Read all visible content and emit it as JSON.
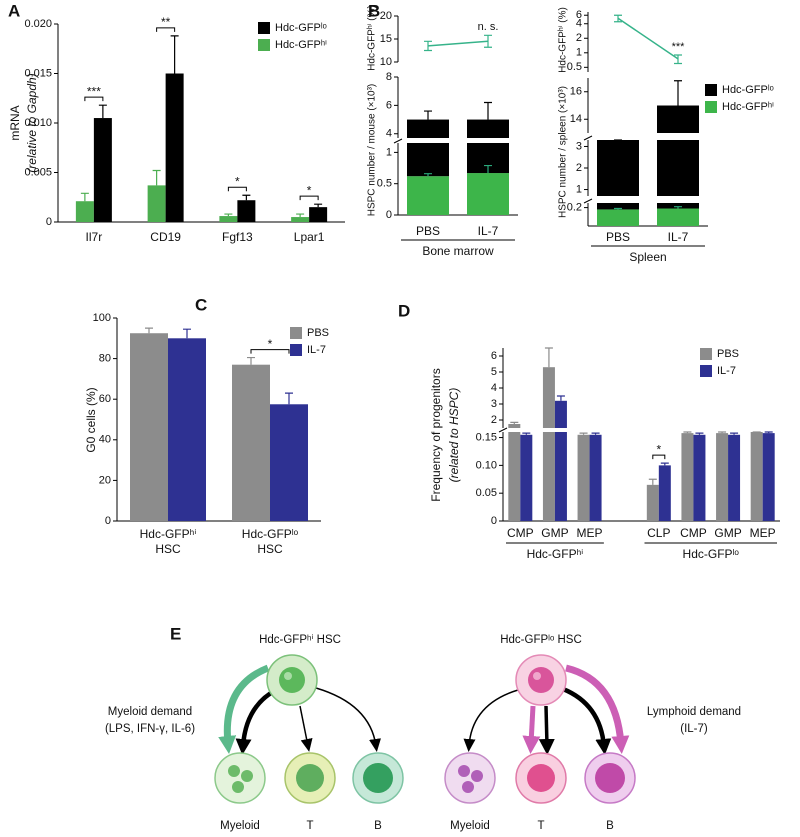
{
  "chart_data": [
    {
      "panel": "A",
      "type": "bar",
      "ylabel": [
        "mRNA",
        "(relative to Gapdh)"
      ],
      "categories": [
        "Il7r",
        "CD19",
        "Fgf13",
        "Lpar1"
      ],
      "series": [
        {
          "name": "Hdc-GFPʰⁱ",
          "color": "#4cae50",
          "values": [
            0.0021,
            0.0037,
            0.0006,
            0.0005
          ],
          "errors": [
            0.0008,
            0.0015,
            0.0002,
            0.0003
          ]
        },
        {
          "name": "Hdc-GFPˡᵒ",
          "color": "#000000",
          "values": [
            0.0105,
            0.015,
            0.0022,
            0.0015
          ],
          "errors": [
            0.0013,
            0.0038,
            0.0005,
            0.0003
          ]
        }
      ],
      "significance": [
        "***",
        "**",
        "*",
        "*"
      ],
      "ylim": [
        0,
        0.02
      ],
      "yticks": [
        0,
        0.005,
        {
          "value": 0.01,
          "label": "0.010"
        },
        0.015,
        {
          "value": 0.02,
          "label": "0.020"
        }
      ]
    },
    {
      "panel": "B",
      "type": "stacked_bar_with_line",
      "ylabel": [
        "HSPC number / mouse (×10³)"
      ],
      "group_label": "Bone marrow",
      "categories": [
        "PBS",
        "IL-7"
      ],
      "series": [
        {
          "name": "Hdc-GFPʰⁱ",
          "color": "#3db54a",
          "values": [
            0.62,
            0.67
          ],
          "errors": [
            0.04,
            0.12
          ]
        },
        {
          "name": "Hdc-GFPˡᵒ",
          "color": "#000000",
          "values": [
            4.38,
            4.33
          ],
          "errors": [
            0.6,
            1.2
          ]
        }
      ],
      "ylim": [
        0,
        8
      ],
      "ybreaks": [
        [
          1.15,
          3.7
        ]
      ],
      "yticks": [
        0,
        0.5,
        1,
        4,
        6,
        8
      ],
      "line": {
        "ylabel": "Hdc-GFPʰⁱ (%)",
        "color": "#36b38a",
        "values": [
          13.5,
          14.5
        ],
        "errors": [
          1.0,
          1.3
        ],
        "ylim": [
          10,
          20
        ],
        "yticks": [
          10,
          15,
          20
        ],
        "annotation": "n. s."
      }
    },
    {
      "type": "stacked_bar_with_line",
      "ylabel": [
        "HSPC number / spleen (×10³)"
      ],
      "group_label": "Spleen",
      "categories": [
        "PBS",
        "IL-7"
      ],
      "series": [
        {
          "name": "Hdc-GFPʰⁱ",
          "color": "#3db54a",
          "values": [
            0.18,
            0.19
          ],
          "errors": [
            0.01,
            0.02
          ]
        },
        {
          "name": "Hdc-GFPˡᵒ",
          "color": "#000000",
          "values": [
            3.12,
            14.81
          ],
          "errors": [
            0.35,
            1.8
          ]
        }
      ],
      "ylim": [
        0,
        17
      ],
      "ybreaks": [
        [
          0.25,
          0.7
        ],
        [
          3.3,
          13
        ]
      ],
      "yticks": [
        0.2,
        1,
        2,
        3,
        14,
        16
      ],
      "line": {
        "ylabel": "Hdc-GFPʰⁱ (%)",
        "color": "#36b38a",
        "values": [
          5.2,
          0.75
        ],
        "errors": [
          0.8,
          0.15
        ],
        "ylim": [
          0.4,
          7
        ],
        "ylog": true,
        "yticks": [
          0.5,
          1,
          2,
          4,
          6
        ],
        "annotation": "***"
      }
    },
    {
      "panel": "C",
      "type": "bar",
      "ylabel": [
        "G0 cells (%)"
      ],
      "categories": [
        [
          "Hdc-GFPʰⁱ",
          "HSC"
        ],
        [
          "Hdc-GFPˡᵒ",
          "HSC"
        ]
      ],
      "series": [
        {
          "name": "PBS",
          "color": "#8c8c8c",
          "values": [
            92.5,
            77
          ],
          "errors": [
            2.5,
            3.5
          ]
        },
        {
          "name": "IL-7",
          "color": "#2e3192",
          "values": [
            90,
            57.5
          ],
          "errors": [
            4.5,
            5.5
          ]
        }
      ],
      "significance": [
        null,
        "*"
      ],
      "ylim": [
        0,
        100
      ],
      "yticks": [
        0,
        20,
        40,
        60,
        80,
        100
      ]
    },
    {
      "panel": "D",
      "type": "bar",
      "ylabel": [
        "Frequency of progenitors",
        "(related to HSPC)"
      ],
      "categories": [
        "CMP",
        "GMP",
        "MEP",
        null,
        "CLP",
        "CMP",
        "GMP",
        "MEP"
      ],
      "group_labels": [
        "Hdc-GFPʰⁱ",
        "Hdc-GFPˡᵒ"
      ],
      "series": [
        {
          "name": "PBS",
          "color": "#8c8c8c",
          "values": [
            1.75,
            5.3,
            0.155,
            null,
            0.065,
            0.158,
            0.158,
            0.16
          ],
          "errors": [
            0.1,
            1.3,
            0.003,
            null,
            0.01,
            0.004,
            0.004,
            0.003
          ]
        },
        {
          "name": "IL-7",
          "color": "#2e3192",
          "values": [
            0.155,
            3.2,
            0.155,
            null,
            0.1,
            0.155,
            0.155,
            0.158
          ],
          "errors": [
            0.003,
            0.3,
            0.003,
            null,
            0.004,
            0.003,
            0.003,
            0.003
          ]
        }
      ],
      "significance": [
        null,
        null,
        null,
        null,
        "*",
        null,
        null,
        null
      ],
      "ylim": [
        0,
        6.5
      ],
      "ybreaks": [
        [
          0.16,
          1.5
        ]
      ],
      "yticks": [
        0,
        0.05,
        {
          "value": 0.1,
          "label": "0.10"
        },
        0.15,
        2,
        3,
        4,
        5,
        6
      ]
    }
  ],
  "diagram": {
    "panel": "E",
    "left_title": "Hdc-GFPʰⁱ HSC",
    "right_title": "Hdc-GFPˡᵒ HSC",
    "left_demand": [
      "Myeloid demand",
      "(LPS, IFN-γ, IL-6)"
    ],
    "right_demand": [
      "Lymphoid demand",
      "(IL-7)"
    ],
    "left_cells": [
      "Myeloid",
      "T",
      "B"
    ],
    "right_cells": [
      "Myeloid",
      "T",
      "B"
    ]
  }
}
